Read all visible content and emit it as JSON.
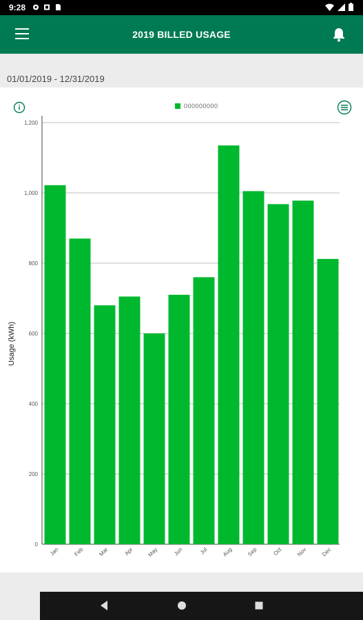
{
  "status": {
    "time": "9:28"
  },
  "header": {
    "title": "2019 BILLED USAGE"
  },
  "date_range": "01/01/2019 - 12/31/2019",
  "legend": {
    "label": "000000000"
  },
  "colors": {
    "brand": "#007a53",
    "bar": "#00b82e"
  },
  "icons": {
    "menu": "menu-icon",
    "bell": "bell-icon",
    "info": "info-icon",
    "export": "export-icon"
  },
  "chart_data": {
    "type": "bar",
    "categories": [
      "Jan",
      "Feb",
      "Mar",
      "Apr",
      "May",
      "Jun",
      "Jul",
      "Aug",
      "Sep",
      "Oct",
      "Nov",
      "Dec"
    ],
    "values": [
      1022,
      870,
      680,
      705,
      600,
      710,
      760,
      1135,
      1005,
      968,
      978,
      812
    ],
    "ylabel": "Usage (kWh)",
    "ylim": [
      0,
      1200
    ],
    "yticks": [
      0,
      200,
      400,
      600,
      800,
      1000,
      1200
    ],
    "ytick_labels": [
      "0",
      "200",
      "400",
      "600",
      "800",
      "1,000",
      "1,200"
    ],
    "grid": true
  }
}
